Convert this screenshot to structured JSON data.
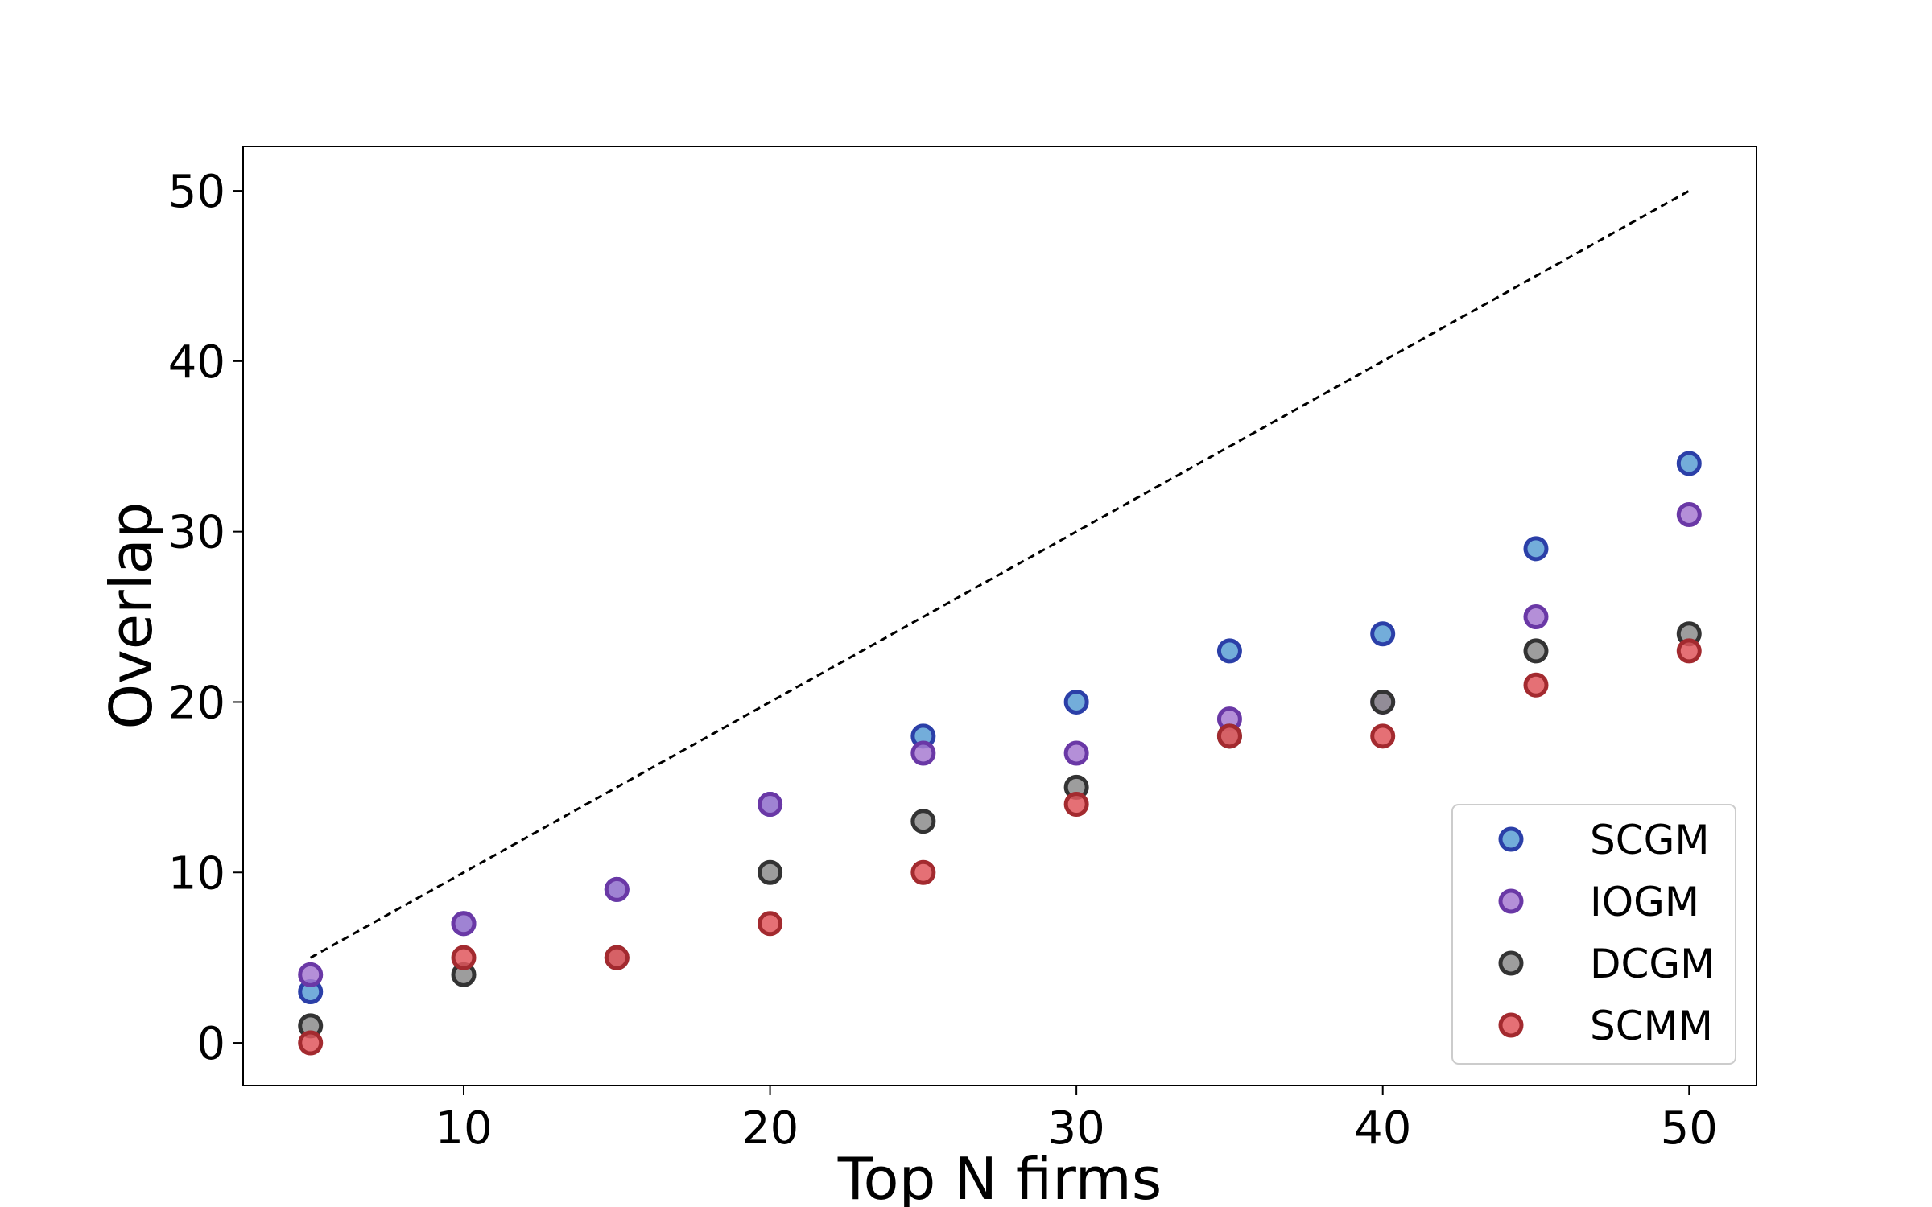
{
  "chart_data": {
    "type": "scatter",
    "title": "",
    "xlabel": "Top N firms",
    "ylabel": "Overlap",
    "xlim": [
      2.8,
      52.2
    ],
    "ylim": [
      -2.5,
      52.6
    ],
    "xticks": [
      10,
      20,
      30,
      40,
      50
    ],
    "yticks": [
      0,
      10,
      20,
      30,
      40,
      50
    ],
    "grid": false,
    "legend_position": "lower-right",
    "reference_line": {
      "style": "dashed",
      "color": "#000000",
      "x": [
        5,
        50
      ],
      "y": [
        5,
        50
      ]
    },
    "x": [
      5,
      10,
      15,
      20,
      25,
      30,
      35,
      40,
      45,
      50
    ],
    "series": [
      {
        "name": "SCGM",
        "fill": "#5a9fd4",
        "edge": "#2b3fa8",
        "values": [
          3,
          7,
          9,
          14,
          18,
          20,
          23,
          24,
          29,
          34
        ]
      },
      {
        "name": "IOGM",
        "fill": "#a77bd1",
        "edge": "#6a38a6",
        "values": [
          4,
          7,
          9,
          14,
          17,
          17,
          19,
          20,
          25,
          31
        ]
      },
      {
        "name": "DCGM",
        "fill": "#8c8c8c",
        "edge": "#333333",
        "values": [
          1,
          4,
          5,
          10,
          13,
          15,
          18,
          20,
          23,
          24
        ]
      },
      {
        "name": "SCMM",
        "fill": "#e0575d",
        "edge": "#a32a2f",
        "values": [
          0,
          5,
          5,
          7,
          10,
          14,
          18,
          18,
          21,
          23
        ]
      }
    ]
  }
}
